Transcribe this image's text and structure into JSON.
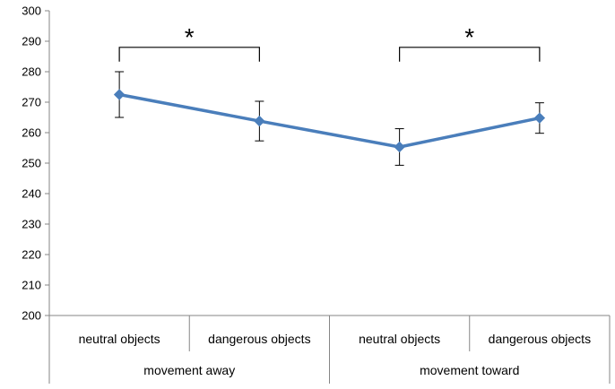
{
  "chart_data": {
    "type": "line",
    "title": "",
    "xlabel": "",
    "ylabel": "",
    "ylim": [
      200,
      300
    ],
    "yticks": [
      200,
      210,
      220,
      230,
      240,
      250,
      260,
      270,
      280,
      290,
      300
    ],
    "grid": false,
    "categories": [
      "neutral objects",
      "dangerous objects",
      "neutral objects",
      "dangerous objects"
    ],
    "groups": [
      {
        "label": "movement away",
        "span": [
          0,
          1
        ]
      },
      {
        "label": "movement toward",
        "span": [
          2,
          3
        ]
      }
    ],
    "series": [
      {
        "values": [
          272.5,
          263.8,
          255.3,
          264.8
        ],
        "error": [
          7.5,
          6.5,
          6.0,
          5.0
        ],
        "color": "#4A7EBB",
        "marker": "diamond"
      }
    ],
    "annotations": [
      {
        "label": "*",
        "from": 0,
        "to": 1,
        "y": 288
      },
      {
        "label": "*",
        "from": 2,
        "to": 3,
        "y": 288
      }
    ]
  }
}
